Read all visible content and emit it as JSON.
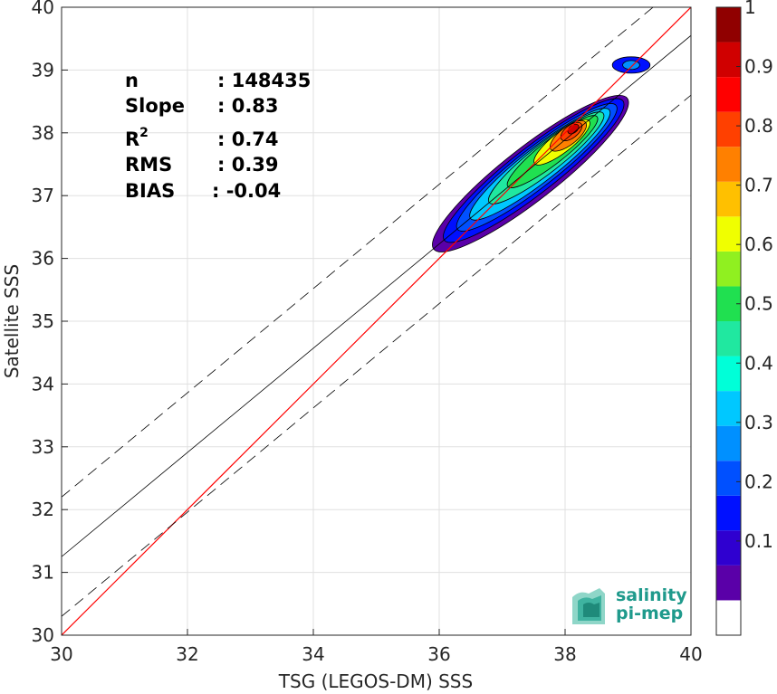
{
  "chart_data": {
    "type": "contour-density-scatter",
    "xlabel": "TSG (LEGOS-DM) SSS",
    "ylabel": "Satellite SSS",
    "xlim": [
      30,
      40
    ],
    "ylim": [
      30,
      40
    ],
    "x_ticks": [
      30,
      32,
      34,
      36,
      38,
      40
    ],
    "y_ticks": [
      30,
      31,
      32,
      33,
      34,
      35,
      36,
      37,
      38,
      39,
      40
    ],
    "grid": true,
    "lines": {
      "identity": {
        "slope": 1,
        "intercept": 0,
        "color": "#ff0000"
      },
      "regression": {
        "slope": 0.83,
        "anchor_x": 30,
        "anchor_y": 31.25,
        "color": "#000000"
      },
      "bounds_offset": 0.95
    },
    "stats": [
      {
        "label": "n",
        "value": ": 148435"
      },
      {
        "label": "Slope",
        "value": ": 0.83"
      },
      {
        "label": "R",
        "sup": "2",
        "value": ": 0.74"
      },
      {
        "label": "RMS",
        "value": ": 0.39"
      },
      {
        "label": "BIAS",
        "value": ": -0.04"
      }
    ],
    "density_centers": [
      {
        "level": 0.05,
        "cx": 37.45,
        "cy": 37.35,
        "a": 1.95,
        "b": 0.42
      },
      {
        "level": 0.15,
        "cx": 37.5,
        "cy": 37.4,
        "a": 1.8,
        "b": 0.36
      },
      {
        "level": 0.25,
        "cx": 37.55,
        "cy": 37.45,
        "a": 1.6,
        "b": 0.31
      },
      {
        "level": 0.35,
        "cx": 37.6,
        "cy": 37.5,
        "a": 1.4,
        "b": 0.27
      },
      {
        "level": 0.45,
        "cx": 37.7,
        "cy": 37.6,
        "a": 1.15,
        "b": 0.23
      },
      {
        "level": 0.55,
        "cx": 37.8,
        "cy": 37.7,
        "a": 0.9,
        "b": 0.19
      },
      {
        "level": 0.65,
        "cx": 37.95,
        "cy": 37.85,
        "a": 0.55,
        "b": 0.16
      },
      {
        "level": 0.75,
        "cx": 38.05,
        "cy": 37.95,
        "a": 0.35,
        "b": 0.14
      },
      {
        "level": 0.85,
        "cx": 38.1,
        "cy": 38.02,
        "a": 0.2,
        "b": 0.1
      },
      {
        "level": 0.95,
        "cx": 38.13,
        "cy": 38.06,
        "a": 0.1,
        "b": 0.06
      }
    ],
    "small_blob": {
      "cx": 39.05,
      "cy": 39.08,
      "rx": 0.3,
      "ry": 0.13
    },
    "colorbar": {
      "ticks": [
        0.1,
        0.2,
        0.3,
        0.4,
        0.5,
        0.6,
        0.7,
        0.8,
        0.9,
        1
      ],
      "tick_labels": [
        "0.1",
        "0.2",
        "0.3",
        "0.4",
        "0.5",
        "0.6",
        "0.7",
        "0.8",
        "0.9",
        "1"
      ],
      "colors": [
        "#ffffff",
        "#5a00a8",
        "#2f00d0",
        "#0010ff",
        "#0050ff",
        "#0090ff",
        "#00c8ff",
        "#00ffd8",
        "#20e8a0",
        "#20e050",
        "#90f020",
        "#f0ff00",
        "#ffc000",
        "#ff8000",
        "#ff4000",
        "#ff0000",
        "#d00000",
        "#900000"
      ]
    }
  },
  "logo": {
    "line1": "salinity",
    "line2": "pi-mep"
  }
}
